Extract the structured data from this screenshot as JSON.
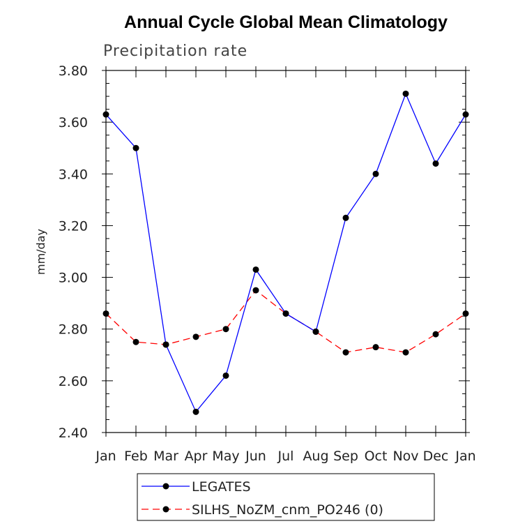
{
  "chart_data": {
    "type": "line",
    "title": "Annual Cycle Global Mean Climatology",
    "subtitle": "Precipitation rate",
    "xlabel": "",
    "ylabel": "mm/day",
    "ylim": [
      2.4,
      3.8
    ],
    "yticks": [
      "2.40",
      "2.60",
      "2.80",
      "3.00",
      "3.20",
      "3.40",
      "3.60",
      "3.80"
    ],
    "categories": [
      "Jan",
      "Feb",
      "Mar",
      "Apr",
      "May",
      "Jun",
      "Jul",
      "Aug",
      "Sep",
      "Oct",
      "Nov",
      "Dec",
      "Jan"
    ],
    "series": [
      {
        "name": "LEGATES",
        "color": "#0000ff",
        "style": "solid",
        "values": [
          3.63,
          3.5,
          2.74,
          2.48,
          2.62,
          3.03,
          2.86,
          2.79,
          3.23,
          3.4,
          3.71,
          3.44,
          3.63
        ]
      },
      {
        "name": "SILHS_NoZM_cnm_PO246 (0)",
        "color": "#ff0000",
        "style": "dashed",
        "values": [
          2.86,
          2.75,
          2.74,
          2.77,
          2.8,
          2.95,
          2.86,
          2.79,
          2.71,
          2.73,
          2.71,
          2.78,
          2.86
        ]
      }
    ],
    "legend_position": "bottom-center",
    "grid": false
  }
}
